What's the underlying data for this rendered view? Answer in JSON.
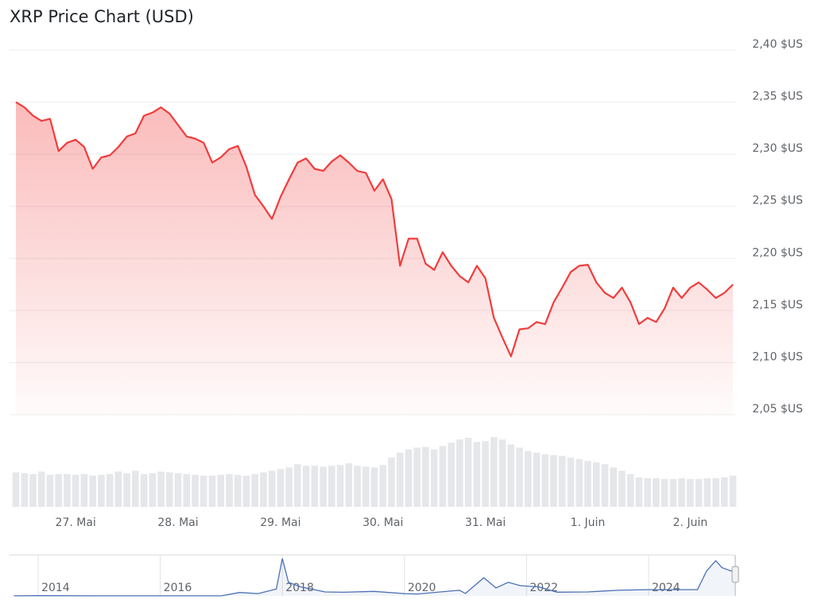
{
  "chart_data": [
    {
      "type": "area",
      "title": "XRP Price Chart (USD)",
      "color": "#f23c3c",
      "grid": true,
      "categories": [
        null,
        null,
        null,
        null,
        null,
        null,
        null,
        "27. Mai",
        null,
        null,
        null,
        null,
        null,
        null,
        null,
        null,
        null,
        null,
        null,
        "28. Mai",
        null,
        null,
        null,
        null,
        null,
        null,
        null,
        null,
        null,
        null,
        null,
        "29. Mai",
        null,
        null,
        null,
        null,
        null,
        null,
        null,
        null,
        null,
        null,
        null,
        "30. Mai",
        null,
        null,
        null,
        null,
        null,
        null,
        null,
        null,
        null,
        null,
        null,
        "31. Mai",
        null,
        null,
        null,
        null,
        null,
        null,
        null,
        null,
        null,
        null,
        null,
        "1. Juin",
        null,
        null,
        null,
        null,
        null,
        null,
        null,
        null,
        null,
        null,
        null,
        "2. Juin",
        null,
        null,
        null,
        null,
        null
      ],
      "values": [
        2.35,
        2.345,
        2.337,
        2.332,
        2.334,
        2.303,
        2.311,
        2.314,
        2.307,
        2.286,
        2.297,
        2.299,
        2.307,
        2.317,
        2.32,
        2.337,
        2.34,
        2.345,
        2.339,
        2.328,
        2.317,
        2.315,
        2.311,
        2.292,
        2.297,
        2.305,
        2.308,
        2.288,
        2.261,
        2.25,
        2.238,
        2.259,
        2.276,
        2.292,
        2.296,
        2.286,
        2.284,
        2.293,
        2.299,
        2.292,
        2.284,
        2.282,
        2.265,
        2.276,
        2.257,
        2.193,
        2.219,
        2.219,
        2.195,
        2.189,
        2.206,
        2.193,
        2.183,
        2.177,
        2.193,
        2.181,
        2.143,
        2.124,
        2.106,
        2.132,
        2.133,
        2.139,
        2.137,
        2.158,
        2.172,
        2.187,
        2.193,
        2.194,
        2.177,
        2.167,
        2.162,
        2.172,
        2.158,
        2.137,
        2.143,
        2.139,
        2.152,
        2.172,
        2.162,
        2.172,
        2.177,
        2.17,
        2.162,
        2.167,
        2.175
      ],
      "volume": {
        "color": "#e6e7ea",
        "values": [
          42,
          41,
          40,
          43,
          39,
          40,
          40,
          39,
          40,
          38,
          39,
          40,
          43,
          41,
          44,
          40,
          41,
          43,
          42,
          41,
          40,
          39,
          38,
          38,
          39,
          40,
          39,
          38,
          40,
          42,
          44,
          46,
          48,
          52,
          50,
          50,
          49,
          50,
          51,
          53,
          50,
          49,
          48,
          51,
          60,
          66,
          70,
          72,
          73,
          70,
          74,
          78,
          82,
          84,
          79,
          80,
          85,
          82,
          76,
          72,
          68,
          66,
          64,
          63,
          62,
          60,
          58,
          56,
          54,
          52,
          48,
          44,
          40,
          36,
          35,
          35,
          34,
          34,
          35,
          34,
          34,
          35,
          35,
          36,
          38
        ]
      },
      "ylim": [
        2.05,
        2.4
      ],
      "yticks": [
        {
          "value": 2.05,
          "label": "2,05 $US"
        },
        {
          "value": 2.1,
          "label": "2,10 $US"
        },
        {
          "value": 2.15,
          "label": "2,15 $US"
        },
        {
          "value": 2.2,
          "label": "2,20 $US"
        },
        {
          "value": 2.25,
          "label": "2,25 $US"
        },
        {
          "value": 2.3,
          "label": "2,30 $US"
        },
        {
          "value": 2.35,
          "label": "2,35 $US"
        },
        {
          "value": 2.4,
          "label": "2,40 $US"
        }
      ]
    },
    {
      "type": "navigator",
      "color": "#4a6fb5",
      "x": [
        2013.6,
        2014,
        2015,
        2016,
        2017,
        2017.3,
        2017.6,
        2017.9,
        2018.0,
        2018.1,
        2018.3,
        2018.7,
        2019,
        2019.5,
        2020,
        2020.2,
        2020.9,
        2021.0,
        2021.3,
        2021.5,
        2021.7,
        2021.9,
        2022.2,
        2022.5,
        2023,
        2023.5,
        2024,
        2024.8,
        2024.95,
        2025.1,
        2025.2,
        2025.35,
        2025.42
      ],
      "values": [
        0.01,
        0.02,
        0.01,
        0.006,
        0.006,
        0.3,
        0.2,
        0.6,
        3.3,
        1.2,
        0.8,
        0.35,
        0.32,
        0.4,
        0.2,
        0.17,
        0.5,
        0.22,
        1.6,
        0.7,
        1.2,
        0.9,
        0.8,
        0.33,
        0.35,
        0.5,
        0.55,
        0.55,
        2.2,
        3.1,
        2.5,
        2.2,
        2.3
      ],
      "xlim": [
        2013.53,
        2025.42
      ],
      "ylim": [
        0,
        3.5
      ],
      "xticks": [
        2014,
        2016,
        2018,
        2020,
        2022,
        2024
      ]
    }
  ]
}
